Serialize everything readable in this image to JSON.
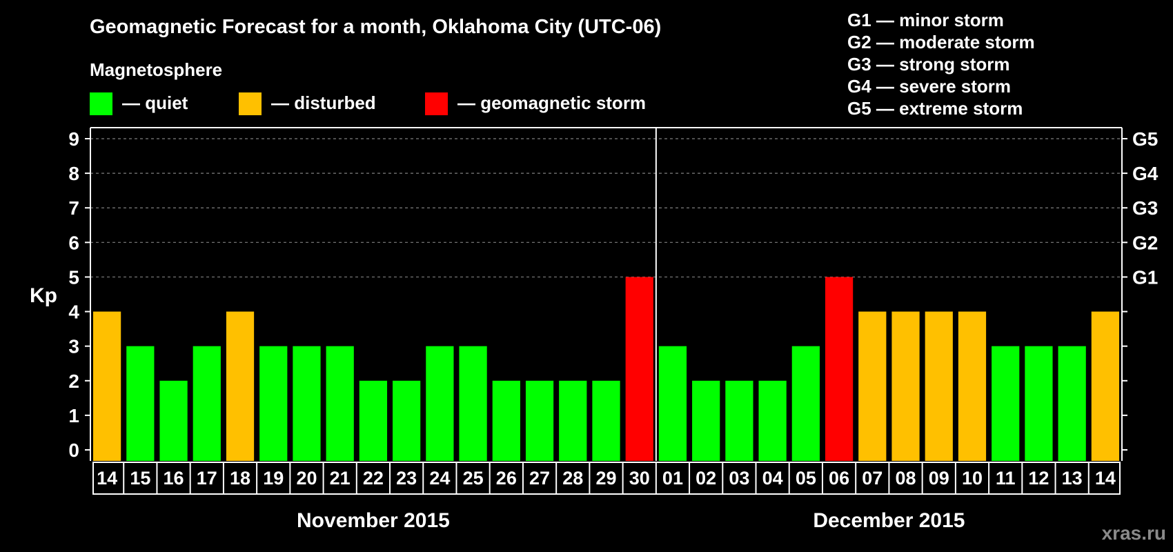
{
  "chart_data": {
    "type": "bar",
    "title": "Geomagnetic Forecast for a month, Oklahoma City (UTC-06)",
    "ylabel": "Kp",
    "ylim": [
      0,
      9
    ],
    "yticks": [
      0,
      1,
      2,
      3,
      4,
      5,
      6,
      7,
      8,
      9
    ],
    "right_axis_labels": [
      {
        "kp": 5,
        "label": "G1"
      },
      {
        "kp": 6,
        "label": "G2"
      },
      {
        "kp": 7,
        "label": "G3"
      },
      {
        "kp": 8,
        "label": "G4"
      },
      {
        "kp": 9,
        "label": "G5"
      }
    ],
    "legend_title": "Magnetosphere",
    "legend": [
      {
        "label": "— quiet",
        "color": "#00ff00",
        "status": "quiet"
      },
      {
        "label": "— disturbed",
        "color": "#ffc000",
        "status": "disturbed"
      },
      {
        "label": "— geomagnetic storm",
        "color": "#ff0000",
        "status": "storm"
      }
    ],
    "storm_levels": [
      "G1 — minor storm",
      "G2 — moderate storm",
      "G3 — strong storm",
      "G4 — severe storm",
      "G5 — extreme storm"
    ],
    "months": [
      {
        "label": "November 2015",
        "days": 17
      },
      {
        "label": "December 2015",
        "days": 14
      }
    ],
    "categories": [
      "14",
      "15",
      "16",
      "17",
      "18",
      "19",
      "20",
      "21",
      "22",
      "23",
      "24",
      "25",
      "26",
      "27",
      "28",
      "29",
      "30",
      "01",
      "02",
      "03",
      "04",
      "05",
      "06",
      "07",
      "08",
      "09",
      "10",
      "11",
      "12",
      "13",
      "14"
    ],
    "values": [
      4,
      3,
      2,
      3,
      4,
      3,
      3,
      3,
      2,
      2,
      3,
      3,
      2,
      2,
      2,
      2,
      5,
      3,
      2,
      2,
      2,
      3,
      5,
      4,
      4,
      4,
      4,
      3,
      3,
      3,
      4
    ],
    "status": [
      "disturbed",
      "quiet",
      "quiet",
      "quiet",
      "disturbed",
      "quiet",
      "quiet",
      "quiet",
      "quiet",
      "quiet",
      "quiet",
      "quiet",
      "quiet",
      "quiet",
      "quiet",
      "quiet",
      "storm",
      "quiet",
      "quiet",
      "quiet",
      "quiet",
      "quiet",
      "storm",
      "disturbed",
      "disturbed",
      "disturbed",
      "disturbed",
      "quiet",
      "quiet",
      "quiet",
      "disturbed"
    ],
    "colors": {
      "quiet": "#00ff00",
      "disturbed": "#ffc000",
      "storm": "#ff0000",
      "background": "#000000",
      "axis": "#ffffff",
      "grid": "#808080"
    }
  },
  "watermark": "xras.ru"
}
